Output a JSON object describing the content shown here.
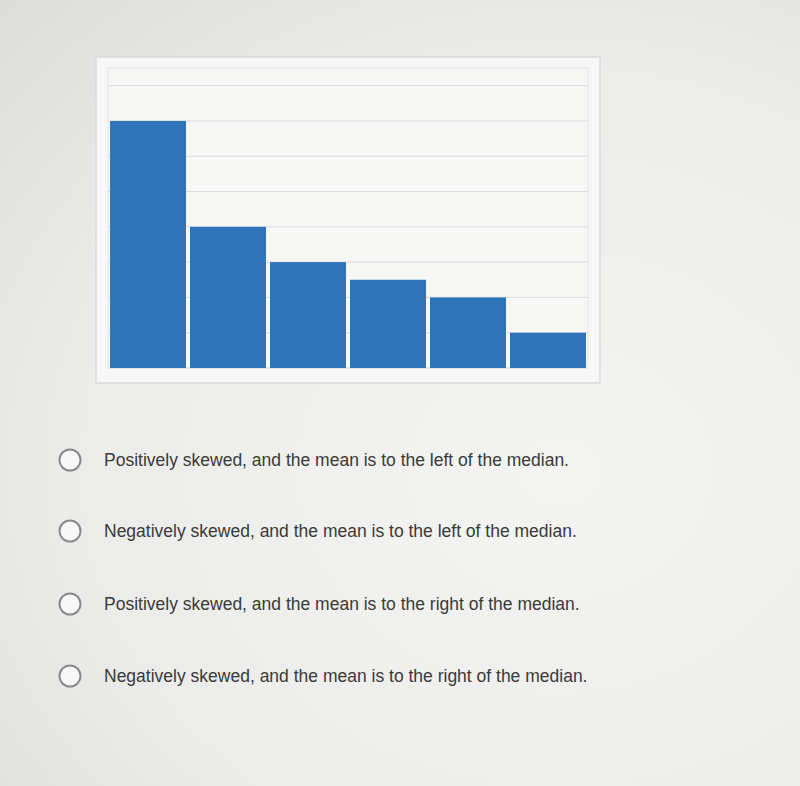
{
  "chart_data": {
    "type": "bar",
    "categories": [
      null,
      null,
      null,
      null,
      null,
      null
    ],
    "values": [
      7,
      4,
      3,
      2.5,
      2,
      1
    ],
    "color": "#2f73b9",
    "ylim": [
      0,
      8.5
    ],
    "yticks": [
      0,
      1,
      2,
      3,
      4,
      5,
      6,
      7,
      8
    ],
    "grid": true,
    "tick_labels": false
  },
  "options": [
    "Positively skewed, and the mean is to the left of the median.",
    "Negatively skewed, and the mean is to the left of the median.",
    "Positively skewed, and the mean is to the right of the median.",
    "Negatively skewed, and the mean is to the right of the median."
  ]
}
